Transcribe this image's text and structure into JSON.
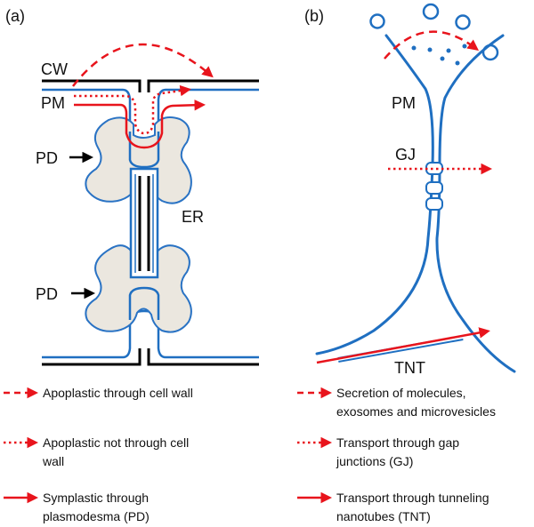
{
  "panels": {
    "a": {
      "tag": "(a)",
      "labels": {
        "cw": "CW",
        "pm": "PM",
        "pd_top": "PD",
        "pd_bottom": "PD",
        "er": "ER"
      }
    },
    "b": {
      "tag": "(b)",
      "labels": {
        "pm": "PM",
        "gj": "GJ",
        "tnt": "TNT"
      }
    }
  },
  "legend": {
    "a": [
      {
        "style": "dashed",
        "lines": [
          "Apoplastic through cell wall"
        ]
      },
      {
        "style": "dotted",
        "lines": [
          "Apoplastic not through cell",
          "wall"
        ]
      },
      {
        "style": "solid",
        "lines": [
          "Symplastic through",
          "plasmodesma (PD)"
        ]
      }
    ],
    "b": [
      {
        "style": "dashed",
        "lines": [
          "Secretion of molecules,",
          "exosomes and microvesicles"
        ]
      },
      {
        "style": "dotted",
        "lines": [
          "Transport through gap",
          "junctions (GJ)"
        ]
      },
      {
        "style": "solid",
        "lines": [
          "Transport through tunneling",
          "nanotubes (TNT)"
        ]
      }
    ]
  },
  "colors": {
    "membrane": "#1f6fc1",
    "wall": "#000000",
    "arrow": "#e8141c",
    "pd_fill": "#ebe7df",
    "pd_stroke": "#2a73c4"
  }
}
